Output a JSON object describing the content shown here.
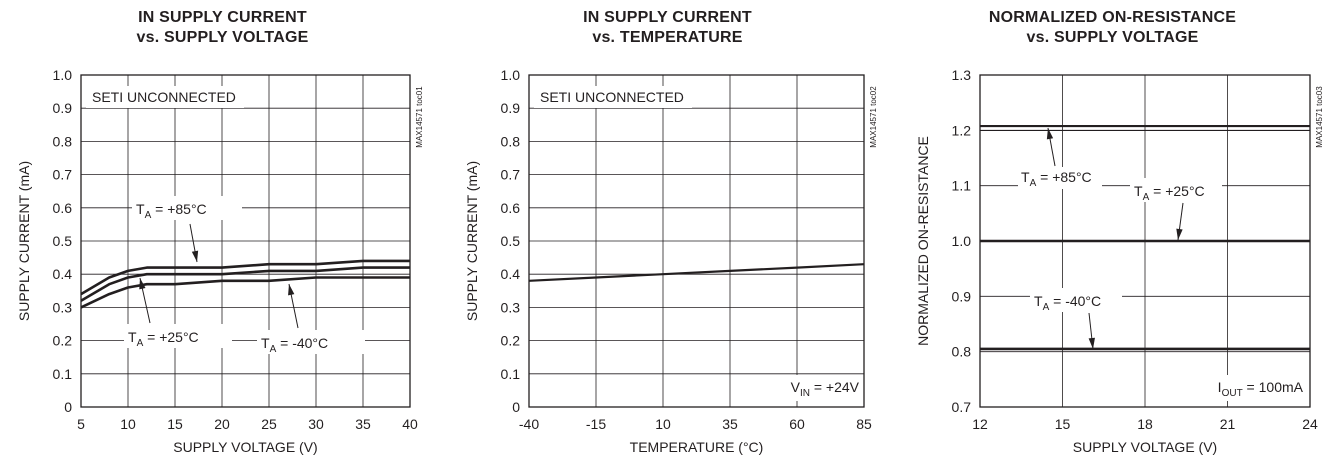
{
  "colors": {
    "ink": "#231f20",
    "background": "#ffffff"
  },
  "chart_data": [
    {
      "type": "line",
      "title": [
        "IN SUPPLY CURRENT",
        "vs. SUPPLY VOLTAGE"
      ],
      "xlabel": "SUPPLY VOLTAGE (V)",
      "ylabel": "SUPPLY CURRENT (mA)",
      "tag": "MAX14571 toc01",
      "xlim": [
        5,
        40
      ],
      "ylim": [
        0,
        1.0
      ],
      "xticks": [
        5,
        10,
        15,
        20,
        25,
        30,
        35,
        40
      ],
      "yticks": [
        0,
        0.1,
        0.2,
        0.3,
        0.4,
        0.5,
        0.6,
        0.7,
        0.8,
        0.9,
        1.0
      ],
      "xtick_labels": [
        "5",
        "10",
        "15",
        "20",
        "25",
        "30",
        "35",
        "40"
      ],
      "ytick_labels": [
        "0",
        "0.1",
        "0.2",
        "0.3",
        "0.4",
        "0.5",
        "0.6",
        "0.7",
        "0.8",
        "0.9",
        "1.0"
      ],
      "grid": true,
      "note": "SETI UNCONNECTED",
      "series": [
        {
          "name": "TA = +85°C",
          "label_main": "T",
          "label_sub": "A",
          "label_rest": " = +85°C",
          "x": [
            5,
            8,
            10,
            12,
            15,
            20,
            25,
            30,
            35,
            40
          ],
          "y": [
            0.34,
            0.39,
            0.41,
            0.42,
            0.42,
            0.42,
            0.43,
            0.43,
            0.44,
            0.44
          ]
        },
        {
          "name": "TA = +25°C",
          "label_main": "T",
          "label_sub": "A",
          "label_rest": " = +25°C",
          "x": [
            5,
            8,
            10,
            12,
            15,
            20,
            25,
            30,
            35,
            40
          ],
          "y": [
            0.32,
            0.37,
            0.39,
            0.4,
            0.4,
            0.4,
            0.41,
            0.41,
            0.42,
            0.42
          ]
        },
        {
          "name": "TA = -40°C",
          "label_main": "T",
          "label_sub": "A",
          "label_rest": " = -40°C",
          "x": [
            5,
            8,
            10,
            12,
            15,
            20,
            25,
            30,
            35,
            40
          ],
          "y": [
            0.3,
            0.34,
            0.36,
            0.37,
            0.37,
            0.38,
            0.38,
            0.39,
            0.39,
            0.39
          ]
        }
      ]
    },
    {
      "type": "line",
      "title": [
        "IN SUPPLY CURRENT",
        "vs. TEMPERATURE"
      ],
      "xlabel": "TEMPERATURE (°C)",
      "ylabel": "SUPPLY CURRENT (mA)",
      "tag": "MAX14571 toc02",
      "xlim": [
        -40,
        85
      ],
      "ylim": [
        0,
        1.0
      ],
      "xticks": [
        -40,
        -15,
        10,
        35,
        60,
        85
      ],
      "yticks": [
        0,
        0.1,
        0.2,
        0.3,
        0.4,
        0.5,
        0.6,
        0.7,
        0.8,
        0.9,
        1.0
      ],
      "xtick_labels": [
        "-40",
        "-15",
        "10",
        "35",
        "60",
        "85"
      ],
      "ytick_labels": [
        "0",
        "0.1",
        "0.2",
        "0.3",
        "0.4",
        "0.5",
        "0.6",
        "0.7",
        "0.8",
        "0.9",
        "1.0"
      ],
      "grid": true,
      "note": "SETI UNCONNECTED",
      "condition": {
        "main": "V",
        "sub": "IN",
        "rest": " = +24V"
      },
      "series": [
        {
          "x": [
            -40,
            -15,
            10,
            35,
            60,
            85
          ],
          "y": [
            0.38,
            0.39,
            0.4,
            0.41,
            0.42,
            0.43
          ]
        }
      ]
    },
    {
      "type": "line",
      "title": [
        "NORMALIZED ON-RESISTANCE",
        "vs. SUPPLY VOLTAGE"
      ],
      "xlabel": "SUPPLY VOLTAGE (V)",
      "ylabel": "NORMALIZED ON-RESISTANCE",
      "tag": "MAX14571 toc03",
      "xlim": [
        12,
        24
      ],
      "ylim": [
        0.7,
        1.3
      ],
      "xticks": [
        12,
        15,
        18,
        21,
        24
      ],
      "yticks": [
        0.7,
        0.8,
        0.9,
        1.0,
        1.1,
        1.2,
        1.3
      ],
      "xtick_labels": [
        "12",
        "15",
        "18",
        "21",
        "24"
      ],
      "ytick_labels": [
        "0.7",
        "0.8",
        "0.9",
        "1.0",
        "1.1",
        "1.2",
        "1.3"
      ],
      "grid": true,
      "condition": {
        "main": "I",
        "sub": "OUT",
        "rest": " = 100mA"
      },
      "series": [
        {
          "name": "TA = +85°C",
          "label_main": "T",
          "label_sub": "A",
          "label_rest": " = +85°C",
          "x": [
            12,
            24
          ],
          "y": [
            1.205,
            1.205
          ]
        },
        {
          "name": "TA = +25°C",
          "label_main": "T",
          "label_sub": "A",
          "label_rest": " = +25°C",
          "x": [
            12,
            24
          ],
          "y": [
            1.0,
            1.0
          ]
        },
        {
          "name": "TA = -40°C",
          "label_main": "T",
          "label_sub": "A",
          "label_rest": " = -40°C",
          "x": [
            12,
            24
          ],
          "y": [
            0.805,
            0.805
          ]
        }
      ]
    }
  ]
}
